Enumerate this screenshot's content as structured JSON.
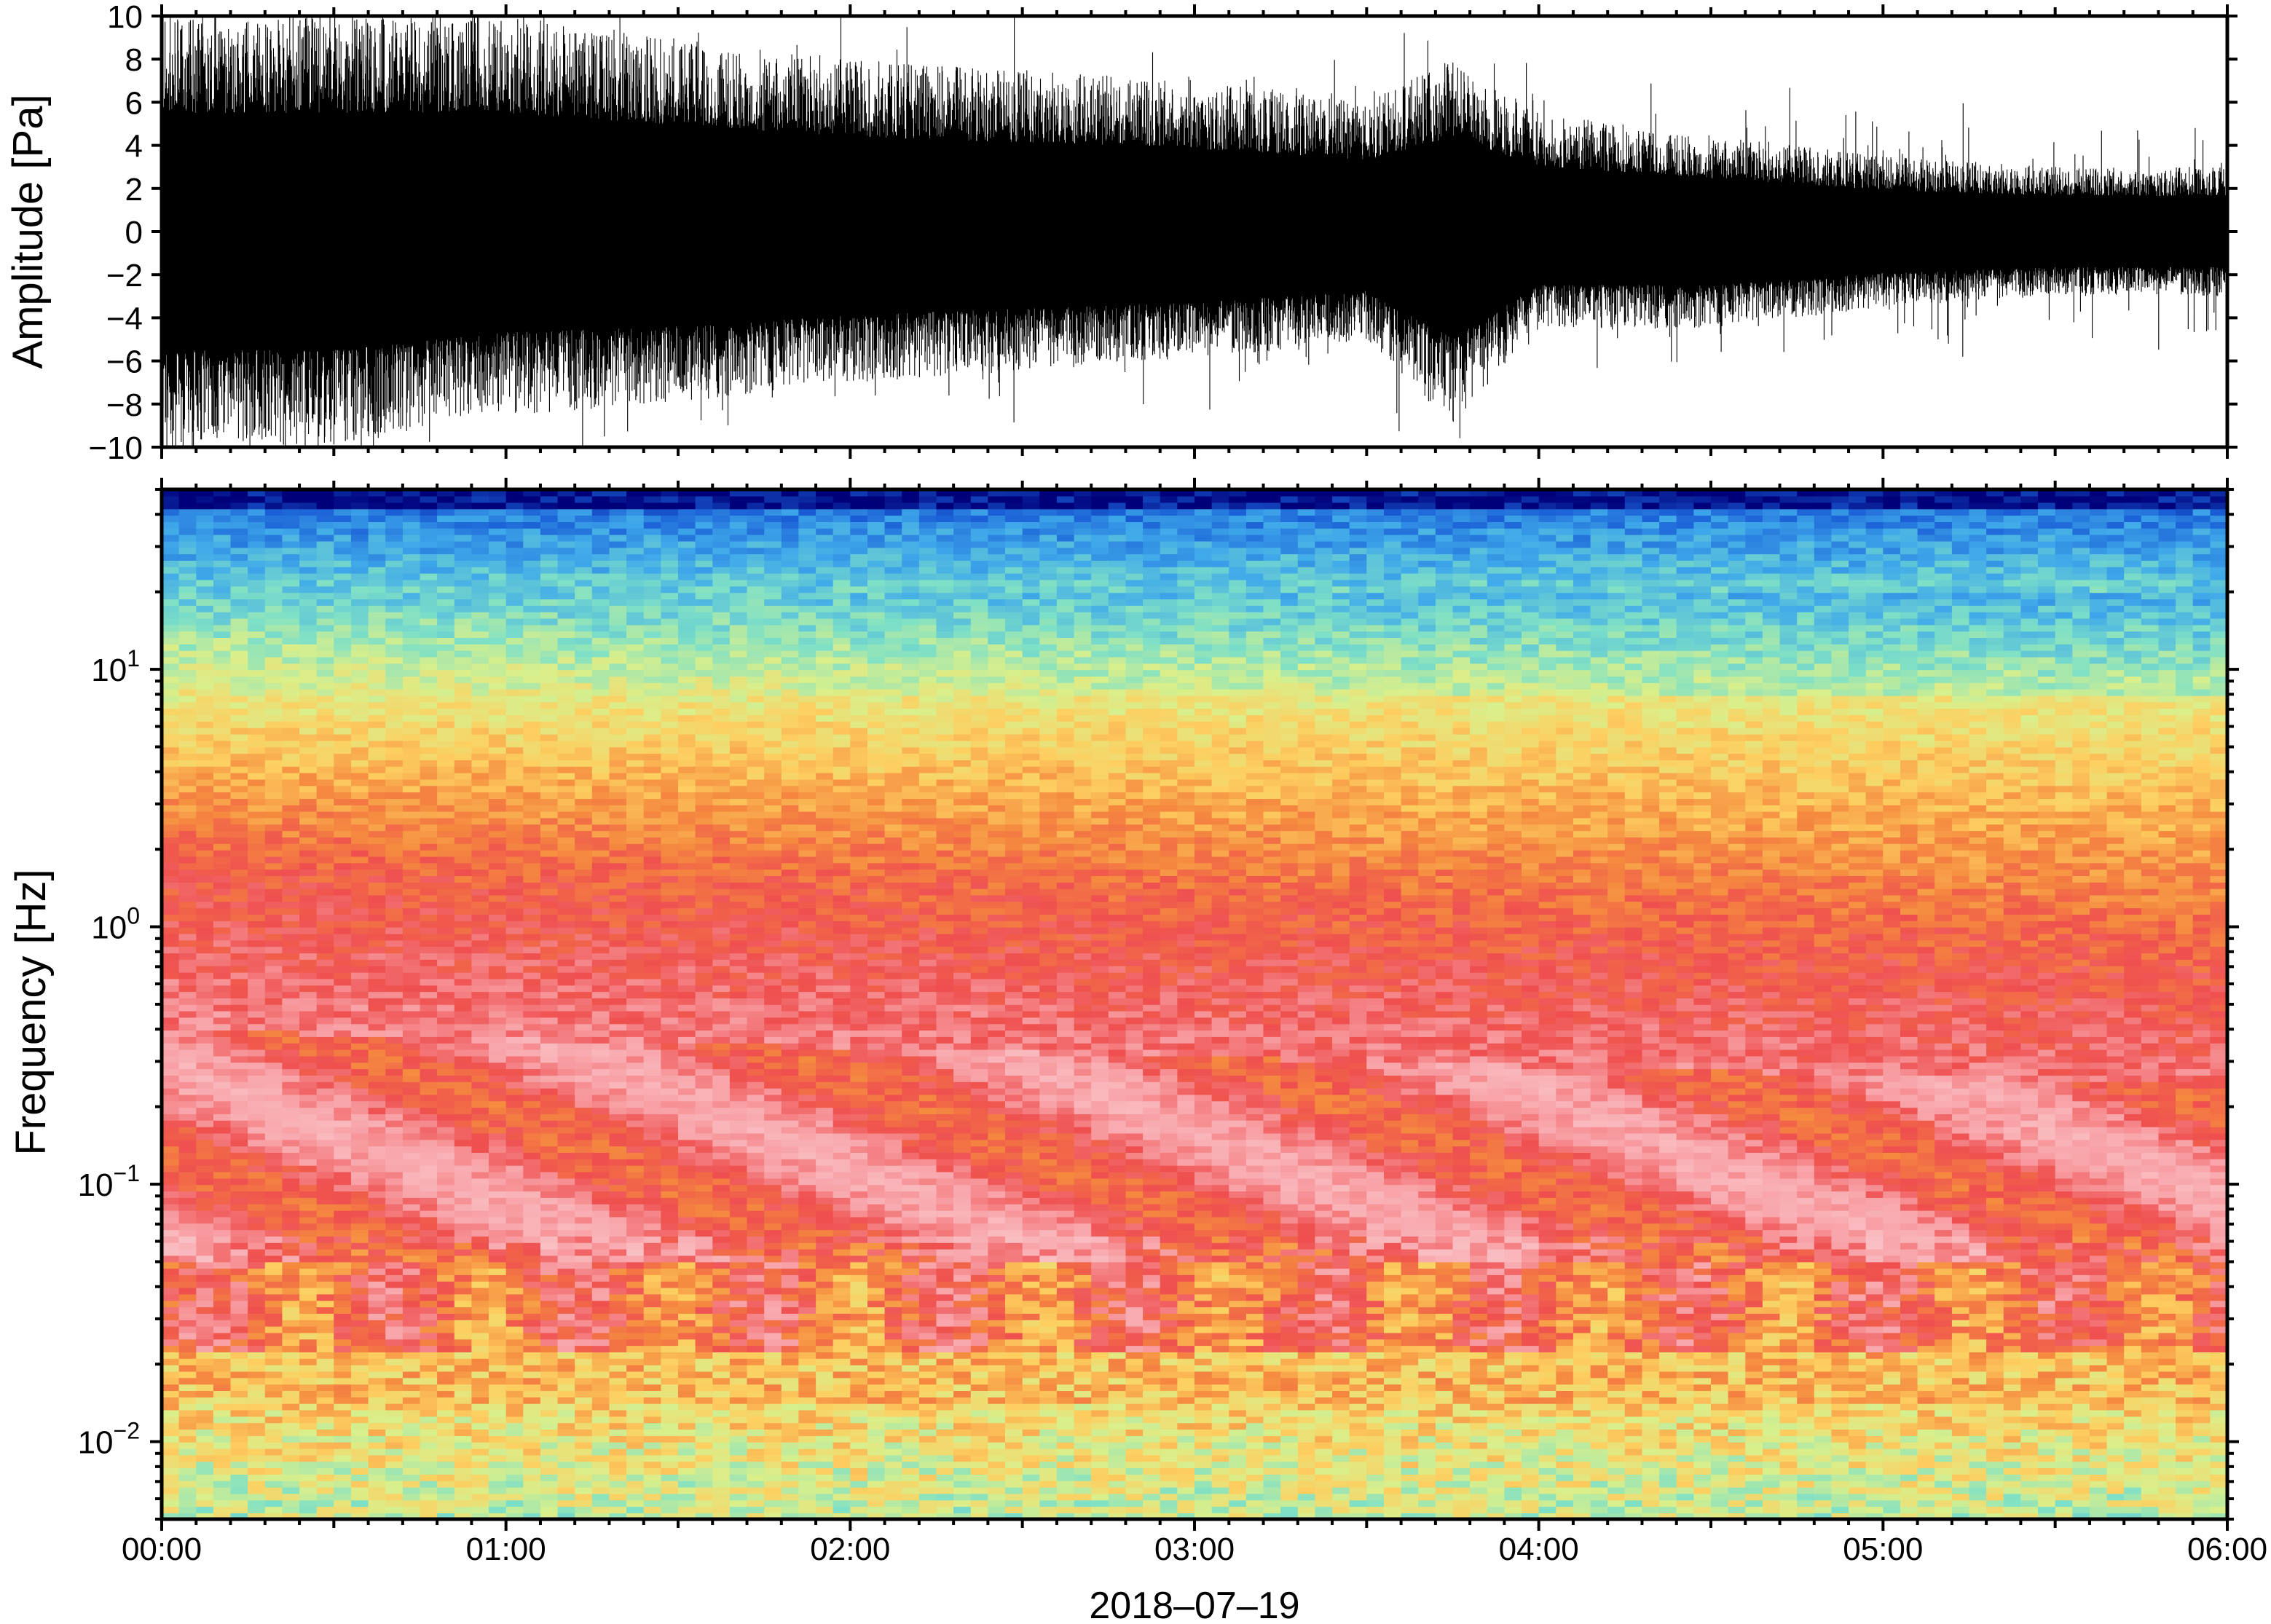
{
  "chart_data": [
    {
      "type": "line",
      "panel": "waveform",
      "ylabel": "Amplitude [Pa]",
      "ylim": [
        -10,
        10
      ],
      "yticks": [
        10,
        8,
        6,
        4,
        2,
        0,
        -2,
        -4,
        -6,
        -8,
        -10
      ],
      "ytick_labels": [
        "10",
        "8",
        "6",
        "4",
        "2",
        "0",
        "−2",
        "−4",
        "−6",
        "−8",
        "−10"
      ],
      "envelope": {
        "time": [
          "00:00",
          "00:30",
          "01:00",
          "01:30",
          "02:00",
          "02:30",
          "03:00",
          "03:30",
          "03:45",
          "04:00",
          "04:30",
          "05:00",
          "05:30",
          "06:00"
        ],
        "upper": [
          10,
          10,
          10,
          9,
          8,
          7.5,
          7,
          6,
          8,
          5.5,
          4.5,
          3.5,
          3,
          3
        ],
        "lower": [
          -10,
          -10,
          -8.5,
          -8,
          -7,
          -6.5,
          -6,
          -5,
          -9,
          -4.5,
          -4.5,
          -3.5,
          -3,
          -3
        ]
      },
      "color": "#000000"
    },
    {
      "type": "heatmap",
      "panel": "spectrogram",
      "ylabel": "Frequency [Hz]",
      "yscale": "log",
      "ylim": [
        0.005,
        50
      ],
      "yticks": [
        0.01,
        0.1,
        1,
        10
      ],
      "ytick_labels": [
        {
          "base": "10",
          "exp": "−2"
        },
        {
          "base": "10",
          "exp": "−1"
        },
        {
          "base": "10",
          "exp": "0"
        },
        {
          "base": "10",
          "exp": "1"
        }
      ],
      "colormap": [
        "#00007a",
        "#1a5fd6",
        "#3fa9ea",
        "#7ee0c6",
        "#d9ef8b",
        "#fdcf60",
        "#f58a3f",
        "#ef4f4f",
        "#f8a3a8",
        "#f9c0c4"
      ]
    }
  ],
  "xaxis": {
    "xlim": [
      "00:00",
      "06:00"
    ],
    "ticks": [
      "00:00",
      "01:00",
      "02:00",
      "03:00",
      "04:00",
      "05:00",
      "06:00"
    ],
    "date": "2018–07–19"
  }
}
